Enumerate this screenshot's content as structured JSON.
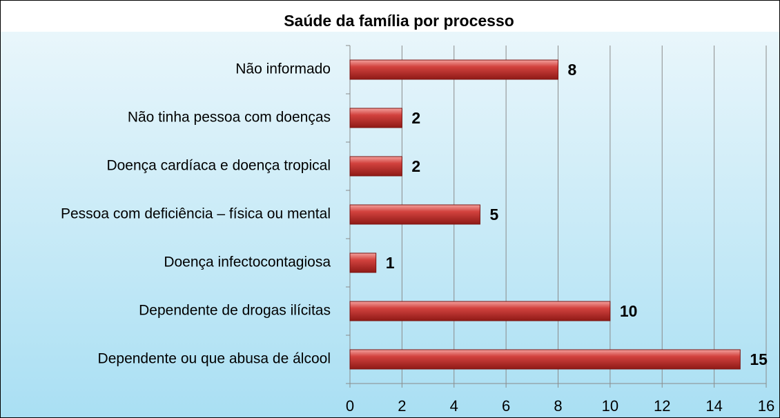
{
  "chart_data": {
    "type": "bar",
    "orientation": "horizontal",
    "title": "Saúde da família por processo",
    "categories": [
      "Não informado",
      "Não tinha pessoa com doenças",
      "Doença cardíaca e doença tropical",
      "Pessoa com deficiência – física ou mental",
      "Doença infectocontagiosa",
      "Dependente de drogas ilícitas",
      "Dependente ou que abusa de álcool"
    ],
    "values": [
      8,
      2,
      2,
      5,
      1,
      10,
      15
    ],
    "color": "#c0302d",
    "xlim": [
      0,
      16
    ],
    "xticks": [
      0,
      2,
      4,
      6,
      8,
      10,
      12,
      14,
      16
    ],
    "grid": true
  }
}
